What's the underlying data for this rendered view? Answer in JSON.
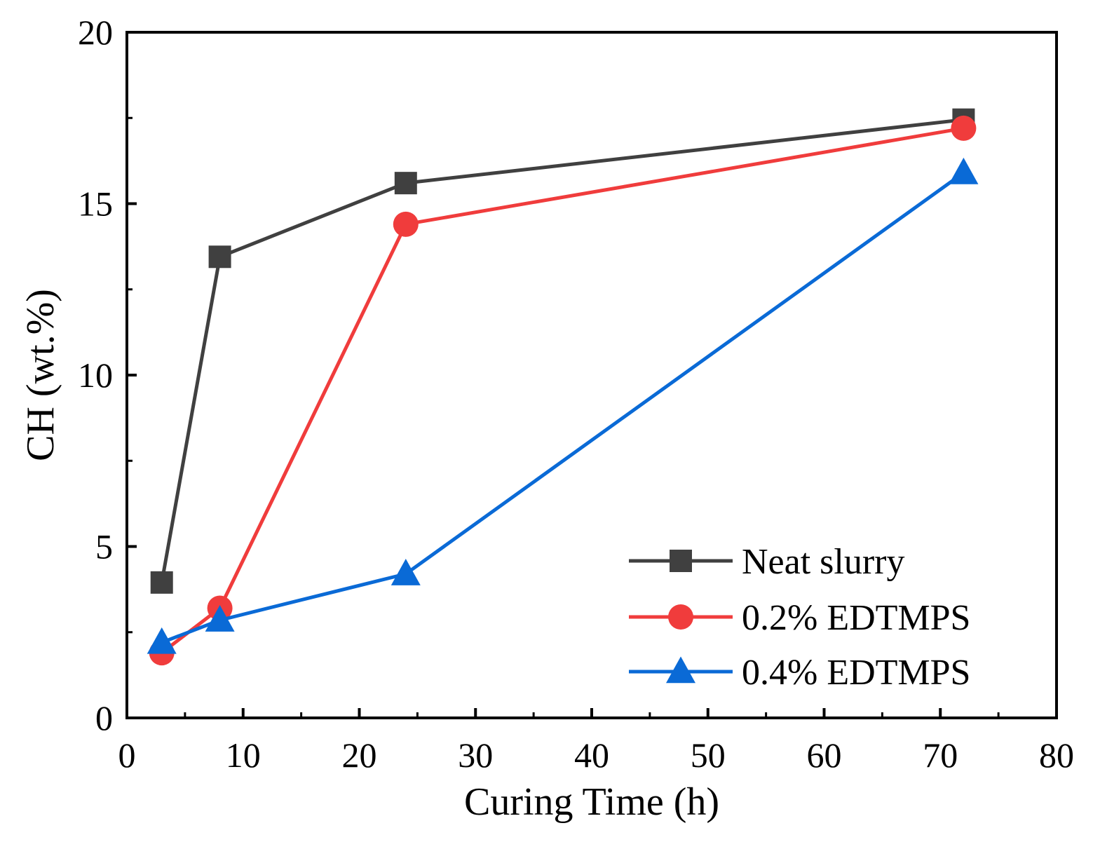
{
  "chart_data": {
    "type": "line",
    "xlabel": "Curing Time (h)",
    "ylabel": "CH (wt.%)",
    "xlim": [
      0,
      80
    ],
    "ylim": [
      0,
      20
    ],
    "xticks": [
      0,
      10,
      20,
      30,
      40,
      50,
      60,
      70,
      80
    ],
    "yticks": [
      0,
      5,
      10,
      15,
      20
    ],
    "xtick_labels": [
      "0",
      "10",
      "20",
      "30",
      "40",
      "50",
      "60",
      "70",
      "80"
    ],
    "ytick_labels": [
      "0",
      "5",
      "10",
      "15",
      "20"
    ],
    "grid": false,
    "legend_position": "bottom-right",
    "x": [
      3,
      8,
      24,
      72
    ],
    "series": [
      {
        "name": "Neat slurry",
        "values": [
          3.95,
          13.45,
          15.6,
          17.45
        ],
        "color": "#404040",
        "marker": "square"
      },
      {
        "name": "0.2% EDTMPS",
        "values": [
          1.9,
          3.2,
          14.4,
          17.2
        ],
        "color": "#f03c3c",
        "marker": "circle"
      },
      {
        "name": "0.4% EDTMPS",
        "values": [
          2.2,
          2.85,
          4.2,
          15.9
        ],
        "color": "#0a6ad6",
        "marker": "triangle"
      }
    ]
  }
}
